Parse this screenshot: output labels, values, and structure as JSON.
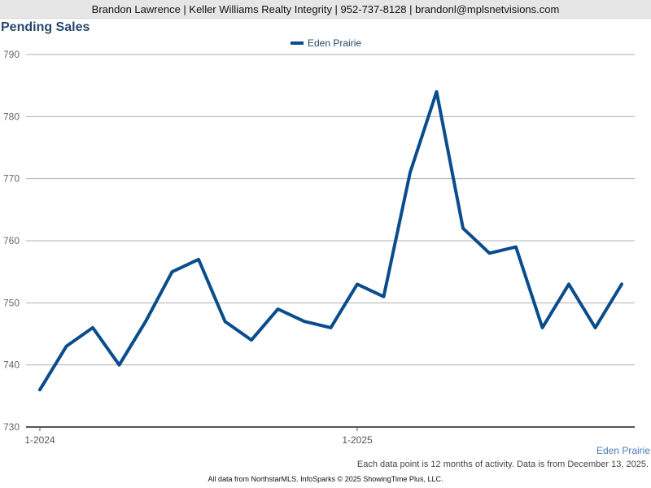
{
  "header": {
    "banner": "Brandon Lawrence | Keller Williams Realty Integrity | 952-737-8128 | brandonl@mplsnetvisions.com"
  },
  "chart_data": {
    "type": "line",
    "title": "Pending Sales",
    "xlabel": "",
    "ylabel": "",
    "ylim": [
      730,
      790
    ],
    "yticks": [
      "730",
      "740",
      "750",
      "760",
      "770",
      "780",
      "790"
    ],
    "xtick_labels": [
      {
        "label": "1-2024",
        "index": 0
      },
      {
        "label": "1-2025",
        "index": 12
      }
    ],
    "grid": true,
    "legend": "top-center",
    "series": [
      {
        "name": "Eden Prairie",
        "color": "#0a4d8c",
        "values": [
          736,
          743,
          746,
          740,
          747,
          755,
          757,
          747,
          744,
          749,
          747,
          746,
          753,
          751,
          771,
          784,
          762,
          758,
          759,
          746,
          753,
          746,
          753
        ]
      }
    ]
  },
  "footer": {
    "location": "Eden Prairie",
    "note": "Each data point is 12 months of activity. Data is from December 13, 2025.",
    "credit": "All data from NorthstarMLS. InfoSparks © 2025 ShowingTime Plus, LLC."
  }
}
